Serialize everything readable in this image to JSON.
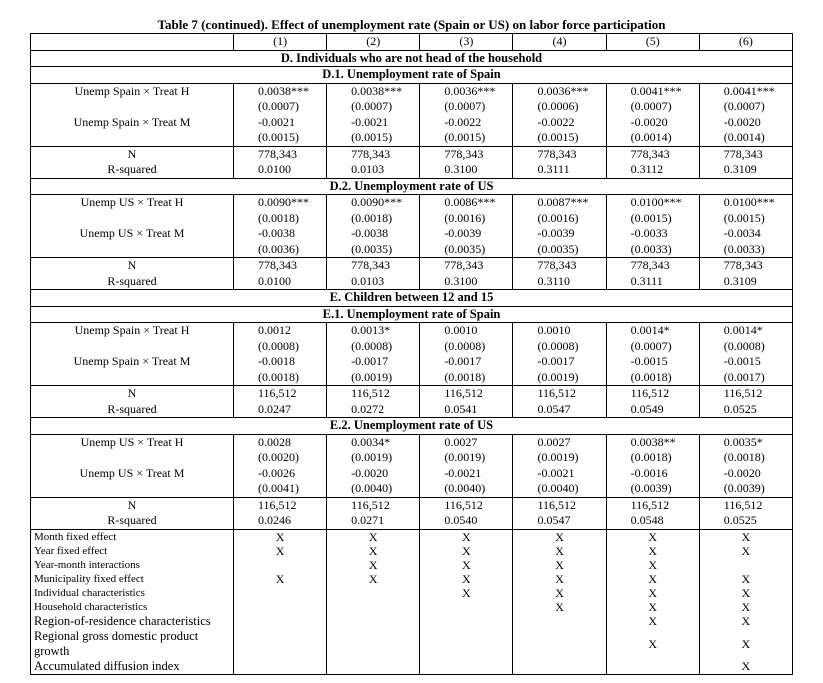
{
  "title": "Table 7 (continued). Effect of unemployment rate (Spain or US) on labor force participation",
  "columns": [
    "(1)",
    "(2)",
    "(3)",
    "(4)",
    "(5)",
    "(6)"
  ],
  "sections": [
    {
      "heading": "D. Individuals who are not head of the household",
      "panels": [
        {
          "heading": "D.1. Unemployment rate of Spain",
          "coef_rows": [
            {
              "label": "Unemp Spain × Treat H",
              "coefs": [
                "0.0038***",
                "0.0038***",
                "0.0036***",
                "0.0036***",
                "0.0041***",
                "0.0041***"
              ],
              "ses": [
                "(0.0007)",
                "(0.0007)",
                "(0.0007)",
                "(0.0006)",
                "(0.0007)",
                "(0.0007)"
              ]
            },
            {
              "label": "Unemp Spain × Treat M",
              "coefs": [
                "-0.0021",
                "-0.0021",
                "-0.0022",
                "-0.0022",
                "-0.0020",
                "-0.0020"
              ],
              "ses": [
                "(0.0015)",
                "(0.0015)",
                "(0.0015)",
                "(0.0015)",
                "(0.0014)",
                "(0.0014)"
              ]
            }
          ],
          "stat_rows": [
            {
              "label": "N",
              "values": [
                "778,343",
                "778,343",
                "778,343",
                "778,343",
                "778,343",
                "778,343"
              ]
            },
            {
              "label": "R-squared",
              "values": [
                "0.0100",
                "0.0103",
                "0.3100",
                "0.3111",
                "0.3112",
                "0.3109"
              ]
            }
          ]
        },
        {
          "heading": "D.2. Unemployment rate of US",
          "coef_rows": [
            {
              "label": "Unemp US × Treat H",
              "coefs": [
                "0.0090***",
                "0.0090***",
                "0.0086***",
                "0.0087***",
                "0.0100***",
                "0.0100***"
              ],
              "ses": [
                "(0.0018)",
                "(0.0018)",
                "(0.0016)",
                "(0.0016)",
                "(0.0015)",
                "(0.0015)"
              ]
            },
            {
              "label": "Unemp US × Treat M",
              "coefs": [
                "-0.0038",
                "-0.0038",
                "-0.0039",
                "-0.0039",
                "-0.0033",
                "-0.0034"
              ],
              "ses": [
                "(0.0036)",
                "(0.0035)",
                "(0.0035)",
                "(0.0035)",
                "(0.0033)",
                "(0.0033)"
              ]
            }
          ],
          "stat_rows": [
            {
              "label": "N",
              "values": [
                "778,343",
                "778,343",
                "778,343",
                "778,343",
                "778,343",
                "778,343"
              ]
            },
            {
              "label": "R-squared",
              "values": [
                "0.0100",
                "0.0103",
                "0.3100",
                "0.3110",
                "0.3111",
                "0.3109"
              ]
            }
          ]
        }
      ]
    },
    {
      "heading": "E. Children between 12 and 15",
      "panels": [
        {
          "heading": "E.1. Unemployment rate of Spain",
          "coef_rows": [
            {
              "label": "Unemp Spain × Treat H",
              "coefs": [
                "0.0012",
                "0.0013*",
                "0.0010",
                "0.0010",
                "0.0014*",
                "0.0014*"
              ],
              "ses": [
                "(0.0008)",
                "(0.0008)",
                "(0.0008)",
                "(0.0008)",
                "(0.0007)",
                "(0.0008)"
              ]
            },
            {
              "label": "Unemp Spain × Treat M",
              "coefs": [
                "-0.0018",
                "-0.0017",
                "-0.0017",
                "-0.0017",
                "-0.0015",
                "-0.0015"
              ],
              "ses": [
                "(0.0018)",
                "(0.0019)",
                "(0.0018)",
                "(0.0019)",
                "(0.0018)",
                "(0.0017)"
              ]
            }
          ],
          "stat_rows": [
            {
              "label": "N",
              "values": [
                "116,512",
                "116,512",
                "116,512",
                "116,512",
                "116,512",
                "116,512"
              ]
            },
            {
              "label": "R-squared",
              "values": [
                "0.0247",
                "0.0272",
                "0.0541",
                "0.0547",
                "0.0549",
                "0.0525"
              ]
            }
          ]
        },
        {
          "heading": "E.2. Unemployment rate of US",
          "coef_rows": [
            {
              "label": "Unemp US × Treat H",
              "coefs": [
                "0.0028",
                "0.0034*",
                "0.0027",
                "0.0027",
                "0.0038**",
                "0.0035*"
              ],
              "ses": [
                "(0.0020)",
                "(0.0019)",
                "(0.0019)",
                "(0.0019)",
                "(0.0018)",
                "(0.0018)"
              ]
            },
            {
              "label": "Unemp US × Treat M",
              "coefs": [
                "-0.0026",
                "-0.0020",
                "-0.0021",
                "-0.0021",
                "-0.0016",
                "-0.0020"
              ],
              "ses": [
                "(0.0041)",
                "(0.0040)",
                "(0.0040)",
                "(0.0040)",
                "(0.0039)",
                "(0.0039)"
              ]
            }
          ],
          "stat_rows": [
            {
              "label": "N",
              "values": [
                "116,512",
                "116,512",
                "116,512",
                "116,512",
                "116,512",
                "116,512"
              ]
            },
            {
              "label": "R-squared",
              "values": [
                "0.0246",
                "0.0271",
                "0.0540",
                "0.0547",
                "0.0548",
                "0.0525"
              ]
            }
          ]
        }
      ]
    }
  ],
  "controls": [
    {
      "label": "Month fixed effect",
      "marks": [
        "X",
        "X",
        "X",
        "X",
        "X",
        "X"
      ]
    },
    {
      "label": "Year fixed effect",
      "marks": [
        "X",
        "X",
        "X",
        "X",
        "X",
        "X"
      ]
    },
    {
      "label": "Year-month interactions",
      "marks": [
        null,
        "X",
        "X",
        "X",
        "X",
        null
      ]
    },
    {
      "label": "Municipality fixed effect",
      "marks": [
        "X",
        "X",
        "X",
        "X",
        "X",
        "X"
      ]
    },
    {
      "label": "Individual characteristics",
      "marks": [
        null,
        null,
        "X",
        "X",
        "X",
        "X"
      ]
    },
    {
      "label": "Household characteristics",
      "marks": [
        null,
        null,
        null,
        "X",
        "X",
        "X"
      ]
    },
    {
      "label": "Region-of-residence characteristics",
      "marks": [
        null,
        null,
        null,
        null,
        "X",
        "X"
      ]
    },
    {
      "label": "Regional gross domestic product growth",
      "marks": [
        null,
        null,
        null,
        null,
        "X",
        "X"
      ]
    },
    {
      "label": "Accumulated diffusion index",
      "marks": [
        null,
        null,
        null,
        null,
        null,
        "X"
      ]
    }
  ]
}
